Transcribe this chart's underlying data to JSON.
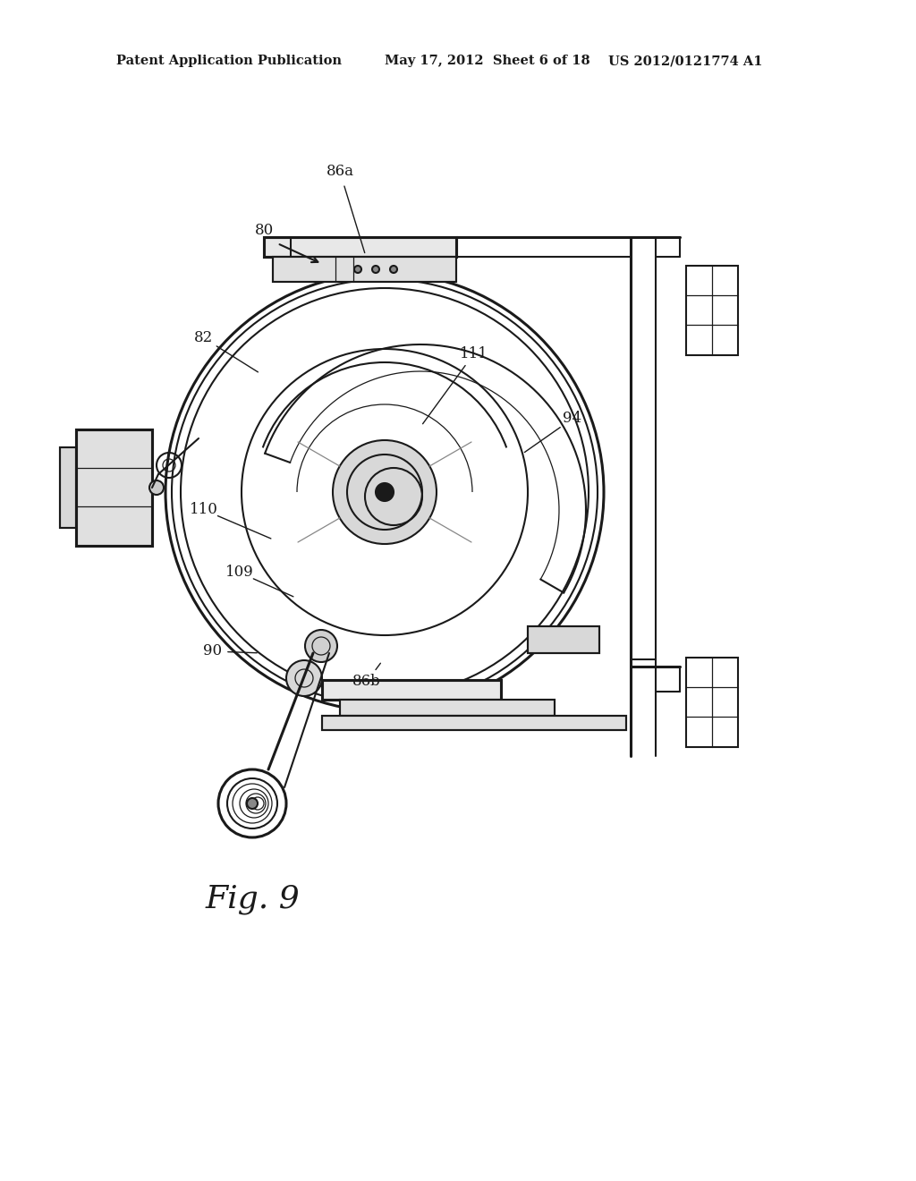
{
  "bg_color": "#ffffff",
  "header_left": "Patent Application Publication",
  "header_mid": "May 17, 2012  Sheet 6 of 18",
  "header_right": "US 2012/0121774 A1",
  "fig_label": "Fig. 9",
  "color": "#1a1a1a",
  "lw_main": 1.5,
  "lw_thick": 2.2,
  "lw_thin": 0.9,
  "header_fontsize": 10.5,
  "fig_label_fontsize": 26,
  "label_fontsize": 12
}
